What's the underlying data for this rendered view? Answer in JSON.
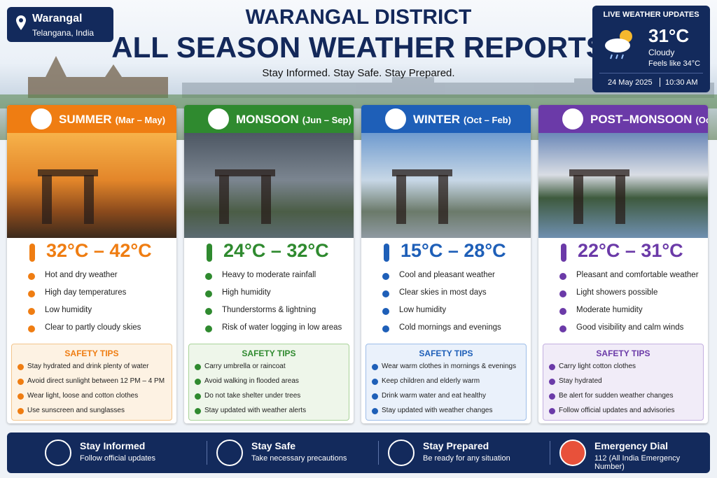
{
  "location": {
    "name": "Warangal",
    "region": "Telangana, India"
  },
  "header": {
    "title_line1": "WARANGAL DISTRICT",
    "title_line2": "ALL SEASON WEATHER REPORTS",
    "tagline": "Stay Informed. Stay Safe. Stay Prepared."
  },
  "live": {
    "label": "LIVE WEATHER UPDATES",
    "temperature": "31°C",
    "condition": "Cloudy",
    "feels_like": "Feels like 34°C",
    "date": "24 May 2025",
    "time": "10:30 AM"
  },
  "seasons": [
    {
      "name": "SUMMER",
      "months": "(Mar – May)",
      "temperature_range": "32°C – 42°C",
      "conditions": [
        "Hot and dry weather",
        "High day temperatures",
        "Low humidity",
        "Clear to partly cloudy skies"
      ],
      "safety_title": "SAFETY TIPS",
      "tips": [
        "Stay hydrated and drink plenty of water",
        "Avoid direct sunlight between 12 PM – 4 PM",
        "Wear light, loose and cotton clothes",
        "Use sunscreen and sunglasses"
      ]
    },
    {
      "name": "MONSOON",
      "months": "(Jun – Sep)",
      "temperature_range": "24°C – 32°C",
      "conditions": [
        "Heavy to moderate rainfall",
        "High humidity",
        "Thunderstorms & lightning",
        "Risk of water logging in low areas"
      ],
      "safety_title": "SAFETY TIPS",
      "tips": [
        "Carry umbrella or raincoat",
        "Avoid walking in flooded areas",
        "Do not take shelter under trees",
        "Stay updated with weather alerts"
      ]
    },
    {
      "name": "WINTER",
      "months": "(Oct – Feb)",
      "temperature_range": "15°C – 28°C",
      "conditions": [
        "Cool and pleasant weather",
        "Clear skies in most days",
        "Low humidity",
        "Cold mornings and evenings"
      ],
      "safety_title": "SAFETY TIPS",
      "tips": [
        "Wear warm clothes in mornings & evenings",
        "Keep children and elderly warm",
        "Drink warm water and eat healthy",
        "Stay updated with weather changes"
      ]
    },
    {
      "name": "POST–MONSOON",
      "months": "(Oct – Nov)",
      "temperature_range": "22°C – 31°C",
      "conditions": [
        "Pleasant and comfortable weather",
        "Light showers possible",
        "Moderate humidity",
        "Good visibility and calm winds"
      ],
      "safety_title": "SAFETY TIPS",
      "tips": [
        "Carry light cotton clothes",
        "Stay hydrated",
        "Be alert for sudden weather changes",
        "Follow official updates and advisories"
      ]
    }
  ],
  "footer": [
    {
      "title": "Stay Informed",
      "subtitle": "Follow official updates"
    },
    {
      "title": "Stay Safe",
      "subtitle": "Take necessary precautions"
    },
    {
      "title": "Stay Prepared",
      "subtitle": "Be ready for any situation"
    },
    {
      "title": "Emergency Dial",
      "subtitle": "112 (All India Emergency Number)"
    }
  ]
}
